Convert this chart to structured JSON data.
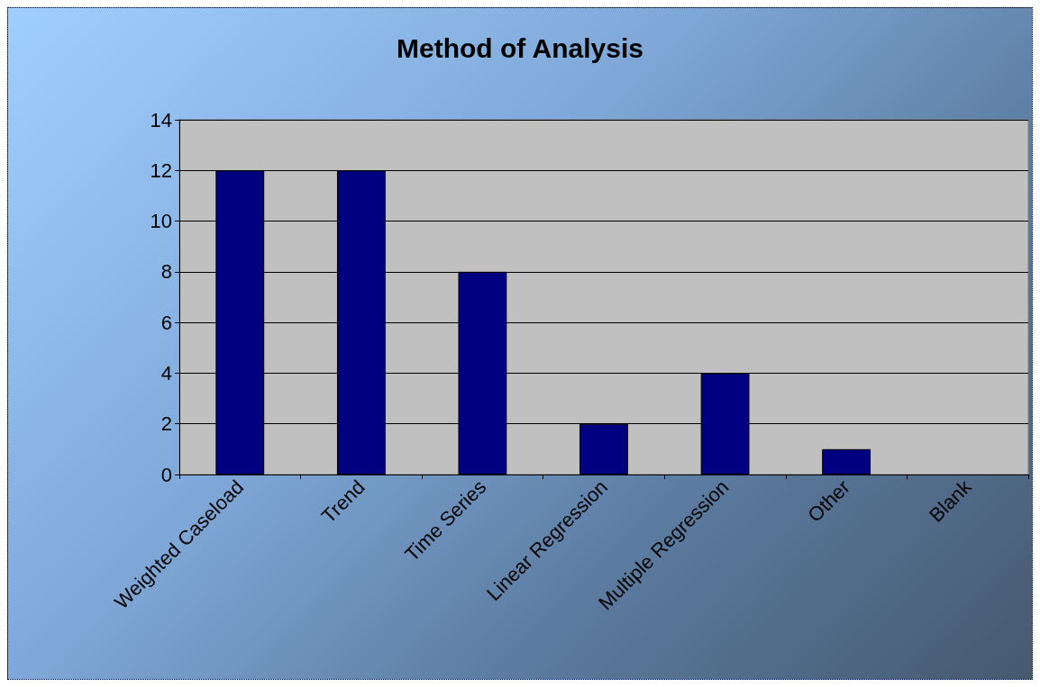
{
  "chart_data": {
    "type": "bar",
    "title": "Method of Analysis",
    "categories": [
      "Weighted Caseload",
      "Trend",
      "Time Series",
      "Linear Regression",
      "Multiple Regression",
      "Other",
      "Blank"
    ],
    "values": [
      12,
      12,
      8,
      2,
      4,
      1,
      0
    ],
    "color": "#000080",
    "ylim": [
      0,
      14
    ],
    "yticks": [
      0,
      2,
      4,
      6,
      8,
      10,
      12,
      14
    ],
    "grid": "y"
  }
}
